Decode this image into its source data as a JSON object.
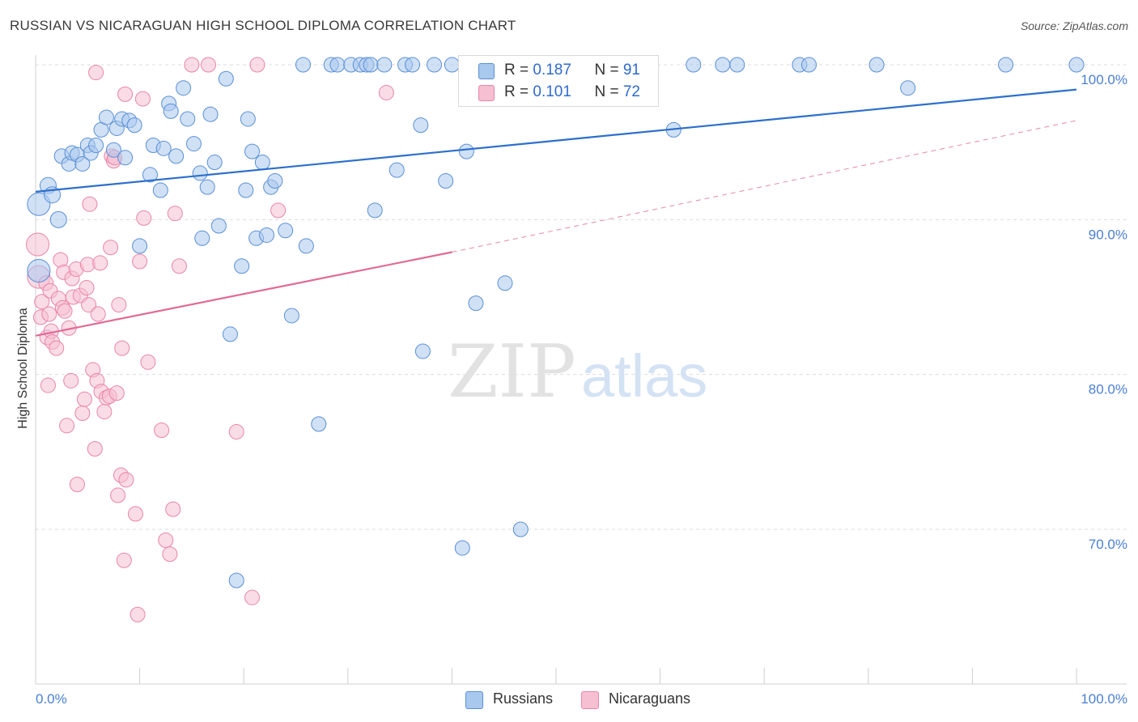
{
  "title": "RUSSIAN VS NICARAGUAN HIGH SCHOOL DIPLOMA CORRELATION CHART",
  "source": "Source: ZipAtlas.com",
  "watermark": {
    "zip": "ZIP",
    "atlas": "atlas"
  },
  "legend_top": {
    "russians": {
      "r_label": "R = ",
      "r_value": "0.187",
      "n_label": "N = ",
      "n_value": "91"
    },
    "nicaraguans": {
      "r_label": "R = ",
      "r_value": "0.101",
      "n_label": "N = ",
      "n_value": "72"
    }
  },
  "legend_bottom": {
    "russians": "Russians",
    "nicaraguans": "Nicaraguans"
  },
  "colors": {
    "blue_fill": "#a9c8ee",
    "blue_stroke": "#5b8fd6",
    "blue_line": "#2d6fcc",
    "pink_fill": "#f6bfd2",
    "pink_stroke": "#e985a8",
    "pink_line": "#e06a95",
    "grid": "#dcdcdc",
    "tick_label": "#4a7fd4"
  },
  "chart_data": {
    "type": "scatter",
    "title": "RUSSIAN VS NICARAGUAN HIGH SCHOOL DIPLOMA CORRELATION CHART",
    "xlabel": "",
    "ylabel": "High School Diploma",
    "xlim": [
      0,
      100
    ],
    "ylim": [
      60,
      100
    ],
    "x_tick_labels": [
      "0.0%",
      "100.0%"
    ],
    "y_ticks": [
      70,
      80,
      90,
      100
    ],
    "y_tick_labels": [
      "70.0%",
      "80.0%",
      "90.0%",
      "100.0%"
    ],
    "series": [
      {
        "name": "Russians",
        "r": 0.187,
        "n": 91,
        "trend": {
          "x": [
            0,
            100
          ],
          "y": [
            91.8,
            98.4
          ]
        },
        "points": [
          [
            0.3,
            91.0
          ],
          [
            0.3,
            86.7
          ],
          [
            1.2,
            92.2
          ],
          [
            1.6,
            91.6
          ],
          [
            2.2,
            90.0
          ],
          [
            2.5,
            94.1
          ],
          [
            3.2,
            93.6
          ],
          [
            3.5,
            94.3
          ],
          [
            4.0,
            94.2
          ],
          [
            4.5,
            93.6
          ],
          [
            5.0,
            94.8
          ],
          [
            5.3,
            94.3
          ],
          [
            5.8,
            94.8
          ],
          [
            6.3,
            95.8
          ],
          [
            6.8,
            96.6
          ],
          [
            7.5,
            94.5
          ],
          [
            7.8,
            95.9
          ],
          [
            8.3,
            96.5
          ],
          [
            8.6,
            94.0
          ],
          [
            9.0,
            96.4
          ],
          [
            9.5,
            96.1
          ],
          [
            10.0,
            88.3
          ],
          [
            11.0,
            92.9
          ],
          [
            11.3,
            94.8
          ],
          [
            12.0,
            91.9
          ],
          [
            12.3,
            94.6
          ],
          [
            12.8,
            97.5
          ],
          [
            13.0,
            97.0
          ],
          [
            13.5,
            94.1
          ],
          [
            14.2,
            98.5
          ],
          [
            14.6,
            96.5
          ],
          [
            15.2,
            94.9
          ],
          [
            15.8,
            93.0
          ],
          [
            16.0,
            88.8
          ],
          [
            16.5,
            92.1
          ],
          [
            16.8,
            96.8
          ],
          [
            17.2,
            93.7
          ],
          [
            17.6,
            89.6
          ],
          [
            18.3,
            99.1
          ],
          [
            18.7,
            82.6
          ],
          [
            19.3,
            66.7
          ],
          [
            19.8,
            87.0
          ],
          [
            20.2,
            91.9
          ],
          [
            20.4,
            96.5
          ],
          [
            20.8,
            94.4
          ],
          [
            21.2,
            88.8
          ],
          [
            21.8,
            93.7
          ],
          [
            22.2,
            89.0
          ],
          [
            22.6,
            92.1
          ],
          [
            23.0,
            92.5
          ],
          [
            24.0,
            89.3
          ],
          [
            24.6,
            83.8
          ],
          [
            25.7,
            100
          ],
          [
            26.0,
            88.3
          ],
          [
            27.2,
            76.8
          ],
          [
            28.4,
            100
          ],
          [
            29.0,
            100
          ],
          [
            30.3,
            100
          ],
          [
            31.2,
            100
          ],
          [
            31.8,
            100
          ],
          [
            32.2,
            100
          ],
          [
            32.6,
            90.6
          ],
          [
            33.5,
            100
          ],
          [
            34.7,
            93.2
          ],
          [
            35.5,
            100
          ],
          [
            36.2,
            100
          ],
          [
            37.0,
            96.1
          ],
          [
            37.2,
            81.5
          ],
          [
            38.3,
            100
          ],
          [
            39.4,
            92.5
          ],
          [
            40.0,
            100
          ],
          [
            41.0,
            68.8
          ],
          [
            41.4,
            94.4
          ],
          [
            42.3,
            84.6
          ],
          [
            44.3,
            100
          ],
          [
            45.1,
            85.9
          ],
          [
            46.6,
            70.0
          ],
          [
            48.2,
            100
          ],
          [
            50.3,
            100
          ],
          [
            55.4,
            100
          ],
          [
            59.0,
            100
          ],
          [
            61.3,
            95.8
          ],
          [
            63.2,
            100
          ],
          [
            66.0,
            100
          ],
          [
            67.4,
            100
          ],
          [
            73.4,
            100
          ],
          [
            74.3,
            100
          ],
          [
            80.8,
            100
          ],
          [
            83.8,
            98.5
          ],
          [
            93.2,
            100
          ],
          [
            100,
            100
          ]
        ]
      },
      {
        "name": "Nicaraguans",
        "r": 0.101,
        "n": 72,
        "trend": {
          "x": [
            0,
            40
          ],
          "y": [
            82.5,
            87.9
          ]
        },
        "trend_extension": {
          "x": [
            40,
            100
          ],
          "y": [
            87.9,
            96.4
          ]
        },
        "points": [
          [
            0.2,
            88.4
          ],
          [
            0.3,
            86.3
          ],
          [
            0.5,
            83.7
          ],
          [
            0.6,
            84.7
          ],
          [
            1.0,
            85.9
          ],
          [
            1.1,
            82.4
          ],
          [
            1.2,
            79.3
          ],
          [
            1.3,
            83.9
          ],
          [
            1.4,
            85.4
          ],
          [
            1.5,
            82.8
          ],
          [
            1.6,
            82.1
          ],
          [
            2.0,
            81.7
          ],
          [
            2.2,
            84.9
          ],
          [
            2.4,
            87.4
          ],
          [
            2.6,
            84.3
          ],
          [
            2.7,
            86.6
          ],
          [
            3.0,
            76.7
          ],
          [
            3.2,
            83.0
          ],
          [
            3.4,
            79.6
          ],
          [
            3.5,
            86.2
          ],
          [
            3.6,
            85.0
          ],
          [
            3.9,
            86.8
          ],
          [
            4.0,
            72.9
          ],
          [
            4.3,
            85.1
          ],
          [
            4.5,
            77.5
          ],
          [
            4.7,
            78.4
          ],
          [
            5.0,
            87.1
          ],
          [
            5.1,
            84.5
          ],
          [
            5.2,
            91.0
          ],
          [
            5.5,
            80.3
          ],
          [
            5.7,
            75.2
          ],
          [
            5.9,
            79.6
          ],
          [
            6.0,
            83.9
          ],
          [
            6.2,
            87.2
          ],
          [
            6.3,
            78.9
          ],
          [
            6.6,
            77.6
          ],
          [
            6.8,
            78.5
          ],
          [
            7.1,
            78.6
          ],
          [
            7.2,
            88.2
          ],
          [
            7.3,
            94.1
          ],
          [
            7.5,
            93.8
          ],
          [
            7.8,
            78.8
          ],
          [
            7.9,
            72.2
          ],
          [
            8.0,
            84.5
          ],
          [
            8.2,
            73.5
          ],
          [
            8.3,
            81.7
          ],
          [
            8.5,
            68.0
          ],
          [
            8.6,
            98.1
          ],
          [
            8.7,
            73.2
          ],
          [
            9.6,
            71.0
          ],
          [
            9.8,
            64.5
          ],
          [
            10.0,
            87.3
          ],
          [
            10.3,
            97.8
          ],
          [
            10.4,
            90.1
          ],
          [
            10.8,
            80.8
          ],
          [
            12.1,
            76.4
          ],
          [
            12.5,
            69.3
          ],
          [
            12.9,
            68.4
          ],
          [
            13.2,
            71.3
          ],
          [
            13.4,
            90.4
          ],
          [
            13.8,
            87.0
          ],
          [
            15.0,
            100
          ],
          [
            16.6,
            100
          ],
          [
            19.3,
            76.3
          ],
          [
            20.8,
            65.6
          ],
          [
            21.3,
            100
          ],
          [
            23.3,
            90.6
          ],
          [
            33.7,
            98.2
          ],
          [
            5.8,
            99.5
          ],
          [
            2.8,
            84.1
          ],
          [
            4.9,
            85.6
          ],
          [
            7.6,
            94.0
          ]
        ]
      }
    ]
  }
}
